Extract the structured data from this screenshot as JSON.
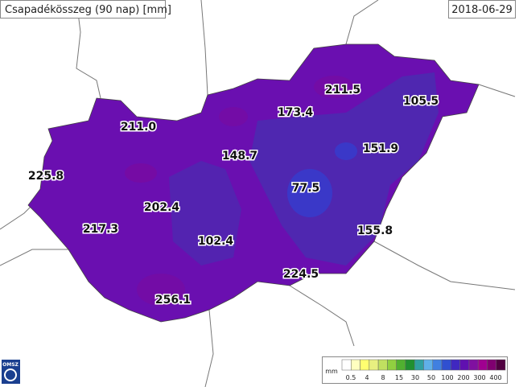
{
  "header": {
    "title": "Csapadékösszeg (90 nap) [mm]",
    "date": "2018-06-29"
  },
  "stations": [
    "211.0",
    "173.4",
    "211.5",
    "105.5",
    "148.7",
    "151.9",
    "225.8",
    "77.5",
    "202.4",
    "217.3",
    "102.4",
    "155.8",
    "224.5",
    "256.1"
  ],
  "legend": {
    "unit": "mm",
    "ticks": [
      0.5,
      4,
      8,
      15,
      30,
      50,
      100,
      200,
      300,
      400
    ],
    "colors": [
      "#ffffff",
      "#ffffc0",
      "#ffff70",
      "#e8f080",
      "#c0e060",
      "#90d040",
      "#50b030",
      "#209030",
      "#30a0a0",
      "#60b0e8",
      "#4080e0",
      "#3050d0",
      "#4028c0",
      "#6010b0",
      "#8010a0",
      "#a00090",
      "#800070",
      "#500040"
    ]
  },
  "logo": "OMSZ"
}
